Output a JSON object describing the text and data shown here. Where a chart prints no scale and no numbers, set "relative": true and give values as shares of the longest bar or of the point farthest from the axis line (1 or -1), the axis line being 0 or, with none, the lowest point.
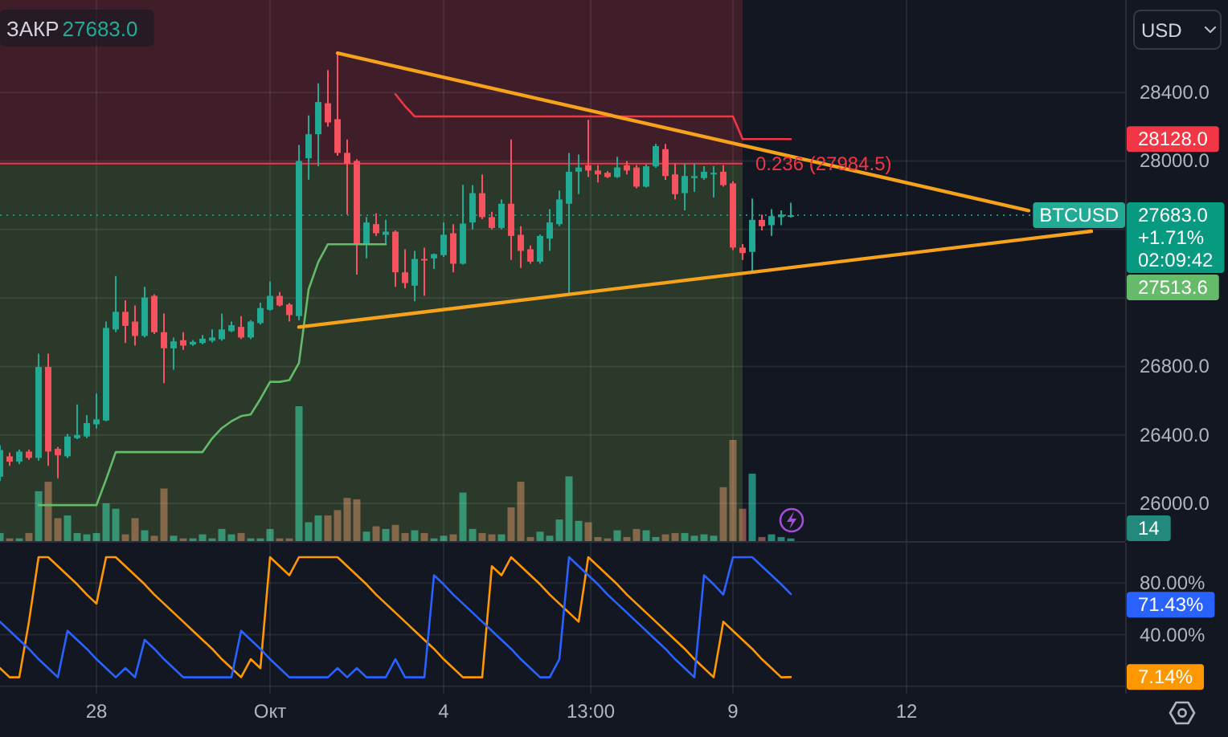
{
  "chart_data": [
    {
      "type": "candlestick",
      "x": [
        "--09-26T08:00",
        "--09-26T12:00",
        "--09-26T16:00",
        "--09-26T20:00",
        "--09-27T00:00",
        "--09-27T04:00",
        "--09-27T08:00",
        "--09-27T12:00",
        "--09-27T16:00",
        "--09-27T20:00",
        "--09-28T00:00",
        "--09-28T04:00",
        "--09-28T08:00",
        "--09-28T12:00",
        "--09-28T16:00",
        "--09-28T20:00",
        "--09-29T00:00",
        "--09-29T04:00",
        "--09-29T08:00",
        "--09-29T12:00",
        "--09-29T16:00",
        "--09-29T20:00",
        "--09-30T00:00",
        "--09-30T04:00",
        "--09-30T08:00",
        "--09-30T12:00",
        "--09-30T16:00",
        "--09-30T20:00",
        "--10-01T00:00",
        "--10-01T04:00",
        "--10-01T08:00",
        "--10-01T12:00",
        "--10-01T16:00",
        "--10-01T20:00",
        "--10-02T00:00",
        "--10-02T04:00",
        "--10-02T08:00",
        "--10-02T12:00",
        "--10-02T16:00",
        "--10-02T20:00",
        "--10-03T00:00",
        "--10-03T04:00",
        "--10-03T08:00",
        "--10-03T12:00",
        "--10-03T16:00",
        "--10-03T20:00",
        "--10-04T00:00",
        "--10-04T04:00",
        "--10-04T08:00",
        "--10-04T12:00",
        "--10-04T16:00",
        "--10-04T20:00",
        "--10-05T00:00",
        "--10-05T04:00",
        "--10-05T08:00",
        "--10-05T12:00",
        "--10-05T16:00",
        "--10-05T20:00",
        "--10-06T00:00",
        "--10-06T04:00",
        "--10-06T08:00",
        "--10-06T12:00",
        "--10-06T16:00",
        "--10-06T20:00",
        "--10-07T00:00",
        "--10-07T04:00",
        "--10-07T08:00",
        "--10-07T12:00",
        "--10-07T16:00",
        "--10-07T20:00",
        "--10-08T00:00",
        "--10-08T04:00",
        "--10-08T08:00",
        "--10-08T12:00",
        "--10-08T16:00",
        "--10-08T20:00",
        "--10-09T00:00",
        "--10-09T04:00",
        "--10-09T08:00",
        "--10-09T12:00",
        "--10-09T16:00",
        "--10-09T20:00",
        "--10-10T00:00"
      ],
      "xlim": [
        "--09-26T08:00",
        "--10-15T18:40"
      ],
      "xticks": [
        {
          "value": "--09-28",
          "label": null
        },
        {
          "value": "--10-01",
          "label": null
        },
        {
          "value": "--10-04",
          "label": null
        },
        {
          "value": "--10-06T13:00",
          "label": null
        },
        {
          "value": "--10-09",
          "label": null
        },
        {
          "value": "--10-12",
          "label": null
        }
      ],
      "ylim": [
        25780,
        28940
      ],
      "yticks": [
        {
          "value": 26000,
          "label": "26000.0"
        },
        {
          "value": 26400,
          "label": "26400.0"
        },
        {
          "value": 26800,
          "label": "26800.0"
        },
        {
          "value": 27200,
          "label": null
        },
        {
          "value": 27600,
          "label": null
        },
        {
          "value": 28000,
          "label": "28000.0"
        },
        {
          "value": 28400,
          "label": "28400.0"
        }
      ],
      "ylabel": "USD",
      "tick_labels": "y",
      "grid": true,
      "series": [
        {
          "type": "candlestick",
          "name": "BTCUSD",
          "ohlc": [
            [
              26156,
              26340,
              26130,
              26312
            ],
            [
              26275,
              26297,
              26219,
              26244
            ],
            [
              26244,
              26315,
              26230,
              26303
            ],
            [
              26303,
              26315,
              26255,
              26266
            ],
            [
              26266,
              26875,
              26250,
              26797
            ],
            [
              26797,
              26875,
              26219,
              26303
            ],
            [
              26319,
              26330,
              26147,
              26281
            ],
            [
              26275,
              26406,
              26265,
              26391
            ],
            [
              26381,
              26578,
              26375,
              26400
            ],
            [
              26391,
              26516,
              26381,
              26469
            ],
            [
              26462,
              26641,
              26437,
              26491
            ],
            [
              26484,
              27062,
              26480,
              27025
            ],
            [
              27016,
              27328,
              27000,
              27119
            ],
            [
              27119,
              27187,
              26937,
              27037
            ],
            [
              27062,
              27156,
              26922,
              26978
            ],
            [
              26978,
              27265,
              26970,
              27203
            ],
            [
              27212,
              27220,
              26990,
              27000
            ],
            [
              27000,
              27109,
              26703,
              26906
            ],
            [
              26906,
              26969,
              26781,
              26947
            ],
            [
              26953,
              27000,
              26897,
              26922
            ],
            [
              26928,
              26955,
              26920,
              26944
            ],
            [
              26937,
              26984,
              26930,
              26962
            ],
            [
              26950,
              27016,
              26940,
              26969
            ],
            [
              26959,
              27109,
              26950,
              27016
            ],
            [
              27006,
              27062,
              27000,
              27041
            ],
            [
              27031,
              27094,
              26960,
              26969
            ],
            [
              26969,
              27070,
              26960,
              27062
            ],
            [
              27053,
              27172,
              27045,
              27141
            ],
            [
              27131,
              27297,
              27125,
              27212
            ],
            [
              27212,
              27234,
              27150,
              27156
            ],
            [
              27162,
              27170,
              27062,
              27100
            ],
            [
              27094,
              28094,
              27069,
              28000
            ],
            [
              28016,
              28266,
              27891,
              28156
            ],
            [
              28156,
              28453,
              27969,
              28344
            ],
            [
              28337,
              28531,
              28200,
              28225
            ],
            [
              28244,
              28625,
              28031,
              28047
            ],
            [
              28047,
              28125,
              27687,
              27984
            ],
            [
              28000,
              28010,
              27337,
              27516
            ],
            [
              27516,
              27672,
              27431,
              27641
            ],
            [
              27631,
              27694,
              27562,
              27578
            ],
            [
              27569,
              27656,
              27516,
              27587
            ],
            [
              27587,
              27595,
              27265,
              27350
            ],
            [
              27350,
              27484,
              27256,
              27287
            ],
            [
              27272,
              27475,
              27181,
              27428
            ],
            [
              27428,
              27494,
              27212,
              27419
            ],
            [
              27431,
              27460,
              27369,
              27456
            ],
            [
              27450,
              27641,
              27440,
              27569
            ],
            [
              27578,
              27631,
              27350,
              27400
            ],
            [
              27400,
              27859,
              27395,
              27634
            ],
            [
              27641,
              27859,
              27600,
              27812
            ],
            [
              27812,
              27922,
              27660,
              27672
            ],
            [
              27672,
              27703,
              27600,
              27609
            ],
            [
              27609,
              27775,
              27600,
              27750
            ],
            [
              27750,
              28125,
              27422,
              27562
            ],
            [
              27569,
              27619,
              27375,
              27475
            ],
            [
              27484,
              27506,
              27400,
              27412
            ],
            [
              27412,
              27570,
              27400,
              27562
            ],
            [
              27547,
              27719,
              27475,
              27641
            ],
            [
              27631,
              27828,
              27620,
              27775
            ],
            [
              27750,
              28047,
              27219,
              27937
            ],
            [
              27937,
              28037,
              27806,
              27962
            ],
            [
              27975,
              28240,
              27906,
              27944
            ],
            [
              27944,
              27975,
              27875,
              27922
            ],
            [
              27931,
              27940,
              27900,
              27906
            ],
            [
              27906,
              28025,
              27900,
              27962
            ],
            [
              27975,
              28000,
              27922,
              27944
            ],
            [
              27962,
              27975,
              27840,
              27850
            ],
            [
              27850,
              27980,
              27845,
              27969
            ],
            [
              27969,
              28100,
              27960,
              28087
            ],
            [
              28069,
              28100,
              27890,
              27912
            ],
            [
              27922,
              27984,
              27775,
              27806
            ],
            [
              27812,
              27984,
              27712,
              27912
            ],
            [
              27900,
              27984,
              27819,
              27912
            ],
            [
              27900,
              27969,
              27890,
              27937
            ],
            [
              27925,
              27969,
              27787,
              27931
            ],
            [
              27937,
              27975,
              27850,
              27859
            ],
            [
              27869,
              27880,
              27480,
              27494
            ],
            [
              27494,
              27515,
              27422,
              27462
            ],
            [
              27469,
              27781,
              27344,
              27656
            ],
            [
              27656,
              27687,
              27594,
              27619
            ],
            [
              27625,
              27719,
              27562,
              27678
            ],
            [
              27672,
              27712,
              27625,
              27687
            ],
            [
              27675,
              27756,
              27670,
              27683
            ]
          ],
          "colors": [
            "#22ab94",
            "#f7525f",
            "#22ab94",
            "#f7525f",
            "#22ab94",
            "#f7525f",
            "#f7525f",
            "#22ab94",
            "#22ab94",
            "#22ab94",
            "#22ab94",
            "#22ab94",
            "#22ab94",
            "#f7525f",
            "#f7525f",
            "#22ab94",
            "#f7525f",
            "#f7525f",
            "#22ab94",
            "#f7525f",
            "#22ab94",
            "#22ab94",
            "#22ab94",
            "#22ab94",
            "#22ab94",
            "#f7525f",
            "#22ab94",
            "#22ab94",
            "#22ab94",
            "#f7525f",
            "#f7525f",
            "#22ab94",
            "#22ab94",
            "#22ab94",
            "#f7525f",
            "#f7525f",
            "#f7525f",
            "#f7525f",
            "#22ab94",
            "#f7525f",
            "#22ab94",
            "#f7525f",
            "#f7525f",
            "#22ab94",
            "#f7525f",
            "#22ab94",
            "#22ab94",
            "#f7525f",
            "#22ab94",
            "#22ab94",
            "#f7525f",
            "#f7525f",
            "#22ab94",
            "#f7525f",
            "#f7525f",
            "#f7525f",
            "#22ab94",
            "#22ab94",
            "#22ab94",
            "#22ab94",
            "#22ab94",
            "#f7525f",
            "#f7525f",
            "#f7525f",
            "#22ab94",
            "#f7525f",
            "#f7525f",
            "#22ab94",
            "#22ab94",
            "#f7525f",
            "#f7525f",
            "#22ab94",
            "#22ab94",
            "#22ab94",
            "#22ab94",
            "#f7525f",
            "#f7525f",
            "#f7525f",
            "#22ab94",
            "#f7525f",
            "#22ab94",
            "#22ab94",
            "#22ab94"
          ]
        },
        {
          "type": "line",
          "color": "#66bb6a",
          "values": [
            null,
            null,
            null,
            null,
            25990,
            25990,
            25990,
            25990,
            25990,
            25990,
            25990,
            26140,
            26300,
            26300,
            26300,
            26300,
            26300,
            26300,
            26300,
            26300,
            26300,
            26300,
            26380,
            26440,
            26480,
            26510,
            26520,
            26610,
            26710,
            26710,
            26720,
            26820,
            27250,
            27410,
            27513.6,
            27513.6,
            27513.6,
            27513.6,
            27513.6,
            27513.6,
            27513.6,
            null,
            null,
            null,
            null,
            null,
            null,
            null,
            null,
            null,
            null,
            null,
            null,
            null,
            null,
            null,
            null,
            null,
            null,
            null,
            null,
            null,
            null,
            null,
            null,
            null,
            null,
            null,
            null,
            null,
            null,
            null,
            null,
            null,
            null,
            null,
            null,
            null,
            null,
            null,
            null,
            null,
            null
          ]
        },
        {
          "type": "line",
          "color": "#f23645",
          "values": [
            null,
            null,
            null,
            null,
            null,
            null,
            null,
            null,
            null,
            null,
            null,
            null,
            null,
            null,
            null,
            null,
            null,
            null,
            null,
            null,
            null,
            null,
            null,
            null,
            null,
            null,
            null,
            null,
            null,
            null,
            null,
            null,
            null,
            null,
            null,
            null,
            null,
            null,
            null,
            null,
            null,
            28390,
            28320,
            28260,
            28260,
            28260,
            28260,
            28260,
            28260,
            28260,
            28260,
            28260,
            28260,
            28260,
            28260,
            28260,
            28260,
            28260,
            28260,
            28260,
            28260,
            28260,
            28260,
            28260,
            28260,
            28260,
            28260,
            28260,
            28260,
            28260,
            28260,
            28260,
            28260,
            28260,
            28260,
            28260,
            28260,
            28128,
            28128,
            28128,
            28128,
            28128,
            28128
          ]
        },
        {
          "type": "line",
          "color": "#f7a21b",
          "x": [
            "--10-02T04:00",
            "--10-14T02:40"
          ],
          "values": [
            28630,
            27710
          ]
        },
        {
          "type": "line",
          "color": "#f7a21b",
          "x": [
            "--10-01T12:00",
            "--10-15T04:40"
          ],
          "values": [
            27030,
            27590
          ]
        }
      ],
      "ref_lines": [
        {
          "axis": "y",
          "value": 27984.5,
          "label": "0.236 (27984.5)",
          "color": "#f23645"
        },
        {
          "axis": "y",
          "value": 27683,
          "label": "27683.0",
          "color": "#089981",
          "line_style": "dotted"
        }
      ],
      "bands": [
        {
          "axis": "y",
          "from": 27984.5,
          "to": 28940,
          "color": "#f23645"
        },
        {
          "axis": "y",
          "from": 25780,
          "to": 27984.5,
          "color": "#8bc34a"
        }
      ],
      "annotations": [
        "ЗАКР",
        "27683.0",
        "+1.71%",
        "02:09:42",
        "27513.6",
        "28128.0"
      ]
    },
    {
      "type": "bar",
      "relative": true,
      "tick_labels": false,
      "x": [
        "--09-26T08:00",
        "--09-26T12:00",
        "--09-26T16:00",
        "--09-26T20:00",
        "--09-27T00:00",
        "--09-27T04:00",
        "--09-27T08:00",
        "--09-27T12:00",
        "--09-27T16:00",
        "--09-27T20:00",
        "--09-28T00:00",
        "--09-28T04:00",
        "--09-28T08:00",
        "--09-28T12:00",
        "--09-28T16:00",
        "--09-28T20:00",
        "--09-29T00:00",
        "--09-29T04:00",
        "--09-29T08:00",
        "--09-29T12:00",
        "--09-29T16:00",
        "--09-29T20:00",
        "--09-30T00:00",
        "--09-30T04:00",
        "--09-30T08:00",
        "--09-30T12:00",
        "--09-30T16:00",
        "--09-30T20:00",
        "--10-01T00:00",
        "--10-01T04:00",
        "--10-01T08:00",
        "--10-01T12:00",
        "--10-01T16:00",
        "--10-01T20:00",
        "--10-02T00:00",
        "--10-02T04:00",
        "--10-02T08:00",
        "--10-02T12:00",
        "--10-02T16:00",
        "--10-02T20:00",
        "--10-03T00:00",
        "--10-03T04:00",
        "--10-03T08:00",
        "--10-03T12:00",
        "--10-03T16:00",
        "--10-03T20:00",
        "--10-04T00:00",
        "--10-04T04:00",
        "--10-04T08:00",
        "--10-04T12:00",
        "--10-04T16:00",
        "--10-04T20:00",
        "--10-05T00:00",
        "--10-05T04:00",
        "--10-05T08:00",
        "--10-05T12:00",
        "--10-05T16:00",
        "--10-05T20:00",
        "--10-06T00:00",
        "--10-06T04:00",
        "--10-06T08:00",
        "--10-06T12:00",
        "--10-06T16:00",
        "--10-06T20:00",
        "--10-07T00:00",
        "--10-07T04:00",
        "--10-07T08:00",
        "--10-07T12:00",
        "--10-07T16:00",
        "--10-07T20:00",
        "--10-08T00:00",
        "--10-08T04:00",
        "--10-08T08:00",
        "--10-08T12:00",
        "--10-08T16:00",
        "--10-08T20:00",
        "--10-09T00:00",
        "--10-09T04:00",
        "--10-09T08:00",
        "--10-09T12:00",
        "--10-09T16:00",
        "--10-09T20:00",
        "--10-10T00:00"
      ],
      "xlim": [
        "--09-26T08:00",
        "--10-15T18:40"
      ],
      "values": [
        0.06,
        0.02,
        0.02,
        0.06,
        0.37,
        0.44,
        0.17,
        0.19,
        0.06,
        0.05,
        0.06,
        0.28,
        0.24,
        0.05,
        0.17,
        0.08,
        0.04,
        0.39,
        0.04,
        0.02,
        0.02,
        0.05,
        0.02,
        0.09,
        0.05,
        0.06,
        0.02,
        0.02,
        0.09,
        0.02,
        0.02,
        1,
        0.14,
        0.19,
        0.19,
        0.23,
        0.32,
        0.31,
        0.07,
        0.11,
        0.09,
        0.12,
        0.06,
        0.08,
        0.06,
        0.02,
        0.04,
        0.05,
        0.36,
        0.09,
        0.06,
        0.05,
        0.05,
        0.25,
        0.44,
        0.03,
        0.07,
        0.04,
        0.16,
        0.48,
        0.15,
        0.14,
        0.03,
        0.02,
        0.08,
        0.03,
        0.09,
        0.08,
        0.03,
        0.05,
        0.06,
        0.06,
        0.04,
        0.05,
        0.04,
        0.4,
        0.75,
        0.24,
        0.5,
        0.03,
        0.05,
        0.03,
        0.02
      ],
      "colors": [
        "#22897c",
        "#84504a",
        "#22897c",
        "#84504a",
        "#22897c",
        "#84504a",
        "#84504a",
        "#22897c",
        "#22897c",
        "#22897c",
        "#22897c",
        "#22897c",
        "#22897c",
        "#84504a",
        "#84504a",
        "#22897c",
        "#84504a",
        "#84504a",
        "#22897c",
        "#84504a",
        "#22897c",
        "#22897c",
        "#22897c",
        "#22897c",
        "#22897c",
        "#84504a",
        "#22897c",
        "#22897c",
        "#22897c",
        "#84504a",
        "#84504a",
        "#22897c",
        "#22897c",
        "#22897c",
        "#84504a",
        "#84504a",
        "#84504a",
        "#84504a",
        "#22897c",
        "#84504a",
        "#22897c",
        "#84504a",
        "#84504a",
        "#22897c",
        "#84504a",
        "#22897c",
        "#22897c",
        "#84504a",
        "#22897c",
        "#22897c",
        "#84504a",
        "#84504a",
        "#22897c",
        "#84504a",
        "#84504a",
        "#84504a",
        "#22897c",
        "#22897c",
        "#22897c",
        "#22897c",
        "#22897c",
        "#84504a",
        "#84504a",
        "#84504a",
        "#22897c",
        "#84504a",
        "#84504a",
        "#22897c",
        "#22897c",
        "#84504a",
        "#84504a",
        "#22897c",
        "#22897c",
        "#22897c",
        "#22897c",
        "#84504a",
        "#84504a",
        "#84504a",
        "#22897c",
        "#84504a",
        "#22897c",
        "#22897c",
        "#22897c"
      ],
      "annotations": [
        "14"
      ]
    },
    {
      "type": "line",
      "x": [
        "--09-26T08:00",
        "--09-26T12:00",
        "--09-26T16:00",
        "--09-26T20:00",
        "--09-27T00:00",
        "--09-27T04:00",
        "--09-27T08:00",
        "--09-27T12:00",
        "--09-27T16:00",
        "--09-27T20:00",
        "--09-28T00:00",
        "--09-28T04:00",
        "--09-28T08:00",
        "--09-28T12:00",
        "--09-28T16:00",
        "--09-28T20:00",
        "--09-29T00:00",
        "--09-29T04:00",
        "--09-29T08:00",
        "--09-29T12:00",
        "--09-29T16:00",
        "--09-29T20:00",
        "--09-30T00:00",
        "--09-30T04:00",
        "--09-30T08:00",
        "--09-30T12:00",
        "--09-30T16:00",
        "--09-30T20:00",
        "--10-01T00:00",
        "--10-01T04:00",
        "--10-01T08:00",
        "--10-01T12:00",
        "--10-01T16:00",
        "--10-01T20:00",
        "--10-02T00:00",
        "--10-02T04:00",
        "--10-02T08:00",
        "--10-02T12:00",
        "--10-02T16:00",
        "--10-02T20:00",
        "--10-03T00:00",
        "--10-03T04:00",
        "--10-03T08:00",
        "--10-03T12:00",
        "--10-03T16:00",
        "--10-03T20:00",
        "--10-04T00:00",
        "--10-04T04:00",
        "--10-04T08:00",
        "--10-04T12:00",
        "--10-04T16:00",
        "--10-04T20:00",
        "--10-05T00:00",
        "--10-05T04:00",
        "--10-05T08:00",
        "--10-05T12:00",
        "--10-05T16:00",
        "--10-05T20:00",
        "--10-06T00:00",
        "--10-06T04:00",
        "--10-06T08:00",
        "--10-06T12:00",
        "--10-06T16:00",
        "--10-06T20:00",
        "--10-07T00:00",
        "--10-07T04:00",
        "--10-07T08:00",
        "--10-07T12:00",
        "--10-07T16:00",
        "--10-07T20:00",
        "--10-08T00:00",
        "--10-08T04:00",
        "--10-08T08:00",
        "--10-08T12:00",
        "--10-08T16:00",
        "--10-08T20:00",
        "--10-09T00:00",
        "--10-09T04:00",
        "--10-09T08:00",
        "--10-09T12:00",
        "--10-09T16:00",
        "--10-09T20:00",
        "--10-10T00:00"
      ],
      "xlim": [
        "--09-26T08:00",
        "--10-15T18:40"
      ],
      "xticks": [
        {
          "value": "--09-28",
          "label": "28"
        },
        {
          "value": "--10-01",
          "label": "Окт"
        },
        {
          "value": "--10-04",
          "label": "4"
        },
        {
          "value": "--10-06T13:00",
          "label": "13:00"
        },
        {
          "value": "--10-09",
          "label": "9"
        },
        {
          "value": "--10-12",
          "label": "12"
        }
      ],
      "ylim": [
        -5.7,
        111.2
      ],
      "yticks": [
        {
          "value": 0,
          "label": null
        },
        {
          "value": 40,
          "label": "40.00%"
        },
        {
          "value": 80,
          "label": "80.00%"
        }
      ],
      "grid": true,
      "series": [
        {
          "color": "#ff9800",
          "values": [
            14,
            7,
            7,
            50,
            100,
            100,
            93,
            86,
            79,
            71,
            64,
            100,
            100,
            93,
            86,
            79,
            71,
            64,
            57,
            50,
            43,
            36,
            29,
            21,
            14,
            7,
            21,
            14,
            100,
            93,
            86,
            100,
            100,
            100,
            100,
            100,
            93,
            86,
            79,
            71,
            64,
            57,
            50,
            43,
            36,
            29,
            21,
            14,
            7,
            7,
            7,
            93,
            86,
            100,
            93,
            86,
            79,
            71,
            64,
            57,
            50,
            100,
            93,
            86,
            79,
            71,
            64,
            57,
            50,
            43,
            36,
            29,
            21,
            14,
            7,
            50,
            43,
            36,
            29,
            21,
            14,
            7,
            7.14
          ]
        },
        {
          "color": "#2962ff",
          "values": [
            50,
            43,
            36,
            29,
            21,
            14,
            7,
            43,
            36,
            29,
            21,
            14,
            7,
            14,
            7,
            36,
            29,
            21,
            14,
            7,
            7,
            7,
            7,
            7,
            7,
            43,
            36,
            29,
            21,
            14,
            7,
            7,
            7,
            7,
            7,
            14,
            7,
            14,
            7,
            7,
            7,
            21,
            7,
            7,
            7,
            86,
            79,
            71,
            64,
            57,
            50,
            43,
            36,
            29,
            21,
            14,
            7,
            7,
            21,
            100,
            93,
            86,
            79,
            71,
            64,
            57,
            50,
            43,
            36,
            29,
            21,
            14,
            7,
            86,
            79,
            71,
            100,
            100,
            100,
            93,
            86,
            79,
            71.43
          ]
        }
      ],
      "annotations": [
        "7.14%",
        "71.43%"
      ]
    }
  ]
}
